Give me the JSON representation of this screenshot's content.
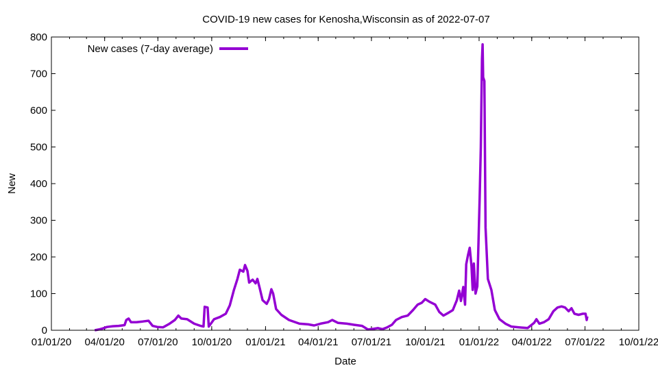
{
  "chart_data": {
    "type": "line",
    "title": "COVID-19 new cases for Kenosha,Wisconsin as of 2022-07-07",
    "xlabel": "Date",
    "ylabel": "New",
    "xlim": [
      "2020-01-01",
      "2022-10-01"
    ],
    "ylim": [
      0,
      800
    ],
    "x_ticks": [
      "01/01/20",
      "04/01/20",
      "07/01/20",
      "10/01/20",
      "01/01/21",
      "04/01/21",
      "07/01/21",
      "10/01/21",
      "01/01/22",
      "04/01/22",
      "07/01/22",
      "10/01/22"
    ],
    "y_ticks": [
      0,
      100,
      200,
      300,
      400,
      500,
      600,
      700,
      800
    ],
    "grid": false,
    "legend": "top-left",
    "series": [
      {
        "name": "New cases (7-day average)",
        "color": "#9400d3",
        "points": [
          [
            "2020-03-15",
            0
          ],
          [
            "2020-03-22",
            2
          ],
          [
            "2020-03-29",
            5
          ],
          [
            "2020-04-05",
            9
          ],
          [
            "2020-04-15",
            11
          ],
          [
            "2020-04-25",
            12
          ],
          [
            "2020-05-05",
            14
          ],
          [
            "2020-05-08",
            28
          ],
          [
            "2020-05-12",
            32
          ],
          [
            "2020-05-16",
            22
          ],
          [
            "2020-05-25",
            22
          ],
          [
            "2020-06-05",
            24
          ],
          [
            "2020-06-15",
            26
          ],
          [
            "2020-06-22",
            12
          ],
          [
            "2020-06-30",
            9
          ],
          [
            "2020-07-10",
            8
          ],
          [
            "2020-07-20",
            17
          ],
          [
            "2020-07-30",
            28
          ],
          [
            "2020-08-05",
            40
          ],
          [
            "2020-08-10",
            32
          ],
          [
            "2020-08-20",
            30
          ],
          [
            "2020-09-01",
            18
          ],
          [
            "2020-09-12",
            12
          ],
          [
            "2020-09-17",
            10
          ],
          [
            "2020-09-19",
            64
          ],
          [
            "2020-09-24",
            62
          ],
          [
            "2020-09-26",
            10
          ],
          [
            "2020-10-05",
            30
          ],
          [
            "2020-10-15",
            36
          ],
          [
            "2020-10-25",
            45
          ],
          [
            "2020-11-01",
            68
          ],
          [
            "2020-11-08",
            110
          ],
          [
            "2020-11-14",
            140
          ],
          [
            "2020-11-18",
            165
          ],
          [
            "2020-11-24",
            160
          ],
          [
            "2020-11-27",
            178
          ],
          [
            "2020-12-01",
            162
          ],
          [
            "2020-12-04",
            130
          ],
          [
            "2020-12-10",
            138
          ],
          [
            "2020-12-15",
            128
          ],
          [
            "2020-12-18",
            140
          ],
          [
            "2020-12-22",
            115
          ],
          [
            "2020-12-27",
            82
          ],
          [
            "2021-01-03",
            72
          ],
          [
            "2021-01-07",
            85
          ],
          [
            "2021-01-11",
            112
          ],
          [
            "2021-01-14",
            100
          ],
          [
            "2021-01-19",
            58
          ],
          [
            "2021-01-28",
            42
          ],
          [
            "2021-02-10",
            28
          ],
          [
            "2021-02-28",
            18
          ],
          [
            "2021-03-15",
            16
          ],
          [
            "2021-03-25",
            13
          ],
          [
            "2021-04-05",
            18
          ],
          [
            "2021-04-18",
            22
          ],
          [
            "2021-04-25",
            28
          ],
          [
            "2021-05-05",
            20
          ],
          [
            "2021-05-20",
            18
          ],
          [
            "2021-06-01",
            15
          ],
          [
            "2021-06-15",
            12
          ],
          [
            "2021-06-25",
            2
          ],
          [
            "2021-07-05",
            4
          ],
          [
            "2021-07-12",
            6
          ],
          [
            "2021-07-20",
            3
          ],
          [
            "2021-07-28",
            8
          ],
          [
            "2021-08-05",
            15
          ],
          [
            "2021-08-12",
            28
          ],
          [
            "2021-08-22",
            36
          ],
          [
            "2021-09-01",
            40
          ],
          [
            "2021-09-10",
            55
          ],
          [
            "2021-09-18",
            70
          ],
          [
            "2021-09-25",
            75
          ],
          [
            "2021-10-01",
            85
          ],
          [
            "2021-10-08",
            78
          ],
          [
            "2021-10-18",
            70
          ],
          [
            "2021-10-25",
            50
          ],
          [
            "2021-11-01",
            40
          ],
          [
            "2021-11-10",
            48
          ],
          [
            "2021-11-17",
            55
          ],
          [
            "2021-11-24",
            82
          ],
          [
            "2021-11-28",
            108
          ],
          [
            "2021-12-01",
            80
          ],
          [
            "2021-12-05",
            118
          ],
          [
            "2021-12-08",
            70
          ],
          [
            "2021-12-10",
            180
          ],
          [
            "2021-12-13",
            205
          ],
          [
            "2021-12-16",
            225
          ],
          [
            "2021-12-19",
            175
          ],
          [
            "2021-12-21",
            110
          ],
          [
            "2021-12-23",
            182
          ],
          [
            "2021-12-26",
            100
          ],
          [
            "2021-12-29",
            120
          ],
          [
            "2022-01-02",
            360
          ],
          [
            "2022-01-04",
            500
          ],
          [
            "2022-01-06",
            740
          ],
          [
            "2022-01-07",
            780
          ],
          [
            "2022-01-08",
            690
          ],
          [
            "2022-01-10",
            680
          ],
          [
            "2022-01-12",
            280
          ],
          [
            "2022-01-16",
            140
          ],
          [
            "2022-01-22",
            110
          ],
          [
            "2022-01-28",
            55
          ],
          [
            "2022-02-05",
            30
          ],
          [
            "2022-02-15",
            18
          ],
          [
            "2022-02-25",
            10
          ],
          [
            "2022-03-10",
            8
          ],
          [
            "2022-03-25",
            6
          ],
          [
            "2022-04-05",
            20
          ],
          [
            "2022-04-09",
            30
          ],
          [
            "2022-04-14",
            18
          ],
          [
            "2022-04-22",
            22
          ],
          [
            "2022-04-30",
            30
          ],
          [
            "2022-05-08",
            52
          ],
          [
            "2022-05-15",
            62
          ],
          [
            "2022-05-22",
            65
          ],
          [
            "2022-05-28",
            62
          ],
          [
            "2022-06-03",
            52
          ],
          [
            "2022-06-08",
            60
          ],
          [
            "2022-06-13",
            45
          ],
          [
            "2022-06-20",
            42
          ],
          [
            "2022-06-27",
            45
          ],
          [
            "2022-07-02",
            45
          ],
          [
            "2022-07-04",
            28
          ],
          [
            "2022-07-05",
            38
          ]
        ]
      }
    ]
  }
}
